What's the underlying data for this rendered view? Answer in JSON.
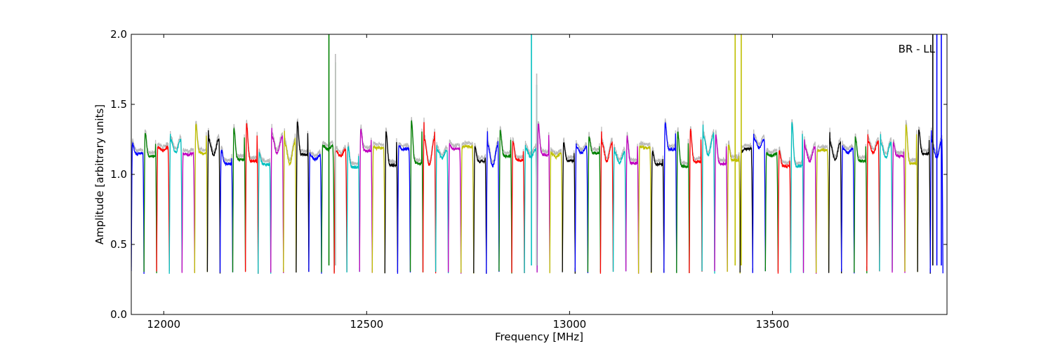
{
  "chart_data": {
    "type": "line",
    "annotation": "BR - LL",
    "xlabel": "Frequency [MHz]",
    "ylabel": "Amplitude [arbitrary units]",
    "xlim": [
      11920,
      13930
    ],
    "ylim": [
      0.0,
      2.0
    ],
    "xticks": [
      12000,
      12500,
      13000,
      13500
    ],
    "xtick_labels": [
      "12000",
      "12500",
      "13000",
      "13500"
    ],
    "yticks": [
      0.0,
      0.5,
      1.0,
      1.5,
      2.0
    ],
    "ytick_labels": [
      "0.0",
      "0.5",
      "1.0",
      "1.5",
      "2.0"
    ],
    "grid": false,
    "legend": "none",
    "band_start": 11920,
    "band_width": 31.25,
    "band_count": 64,
    "colors": [
      "#0000ff",
      "#008000",
      "#ff0000",
      "#00bfbf",
      "#bf00bf",
      "#bfbf00",
      "#000000"
    ],
    "background_series_color": "#bbbbbb",
    "description": "Stacked spectral windows, each shaped as a passband with amplitude near 1.0-1.35 and deep dips near 0.25-0.35 at window edges; colors cycle blue, green, red, cyan, magenta, yellow, black.",
    "spikes": [
      {
        "x": 12407,
        "ymax": 2.0,
        "color": "#008000"
      },
      {
        "x": 12423,
        "ymax": 1.8,
        "color": "#008000"
      },
      {
        "x": 12423,
        "ymax": 1.86,
        "color": "#bbbbbb"
      },
      {
        "x": 12906,
        "ymax": 2.0,
        "color": "#00bfbf"
      },
      {
        "x": 12919,
        "ymax": 1.64,
        "color": "#00bfbf"
      },
      {
        "x": 12919,
        "ymax": 1.72,
        "color": "#bbbbbb"
      },
      {
        "x": 13408,
        "ymax": 2.0,
        "color": "#bfbf00"
      },
      {
        "x": 13423,
        "ymax": 2.0,
        "color": "#bfbf00"
      },
      {
        "x": 13895,
        "ymax": 2.0,
        "color": "#000000"
      },
      {
        "x": 13905,
        "ymax": 2.0,
        "color": "#0000ff"
      },
      {
        "x": 13916,
        "ymax": 2.0,
        "color": "#0000ff"
      }
    ]
  }
}
